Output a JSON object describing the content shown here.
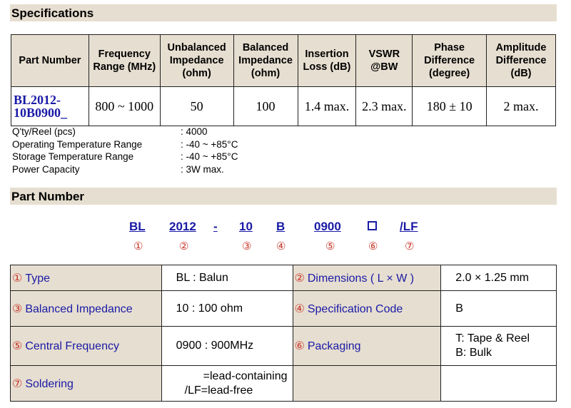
{
  "sections": {
    "specifications": "Specifications",
    "part_number": "Part Number"
  },
  "spec_table": {
    "headers": {
      "part_number": "Part Number",
      "frequency_range": "Frequency Range (MHz)",
      "unbalanced_impedance": "Unbalanced Impedance (ohm)",
      "balanced_impedance": "Balanced Impedance (ohm)",
      "insertion_loss": "Insertion Loss (dB)",
      "vswr": "VSWR @BW",
      "phase_difference": "Phase Difference (degree)",
      "amplitude_difference": "Amplitude Difference (dB)"
    },
    "row": {
      "part_number": "BL2012-10B0900_",
      "frequency_range": "800 ~ 1000",
      "unbalanced_impedance": "50",
      "balanced_impedance": "100",
      "insertion_loss": "1.4 max.",
      "vswr": "2.3 max.",
      "phase_difference": "180 ± 10",
      "amplitude_difference": "2 max."
    }
  },
  "conditions": [
    {
      "label": "Q'ty/Reel (pcs)",
      "value": ": 4000"
    },
    {
      "label": "Operating Temperature Range",
      "value": ": -40 ~ +85°C"
    },
    {
      "label": "Storage Temperature Range",
      "value": ": -40 ~ +85°C"
    },
    {
      "label": "Power Capacity",
      "value": ": 3W max."
    }
  ],
  "code": {
    "parts": [
      "BL",
      "2012",
      "-",
      "10",
      "B",
      "0900",
      "/LF"
    ],
    "markers": [
      "①",
      "②",
      "③",
      "④",
      "⑤",
      "⑥",
      "⑦"
    ]
  },
  "pn_table": {
    "type": {
      "num": "①",
      "label": "Type",
      "value": "BL : Balun"
    },
    "dimensions": {
      "num": "②",
      "label": "Dimensions ( L × W )",
      "value": "2.0 × 1.25 mm"
    },
    "balanced_impedance": {
      "num": "③",
      "label": "Balanced Impedance",
      "value": "10 : 100 ohm"
    },
    "spec_code": {
      "num": "④",
      "label": "Specification Code",
      "value": "B"
    },
    "central_frequency": {
      "num": "⑤",
      "label": "Central Frequency",
      "value": "0900 : 900MHz"
    },
    "packaging": {
      "num": "⑥",
      "label": "Packaging",
      "value_line1": "T: Tape & Reel",
      "value_line2": "B: Bulk"
    },
    "soldering": {
      "num": "⑦",
      "label": "Soldering",
      "value_line1": "=lead-containing",
      "value_line2": "/LF=lead-free"
    }
  }
}
